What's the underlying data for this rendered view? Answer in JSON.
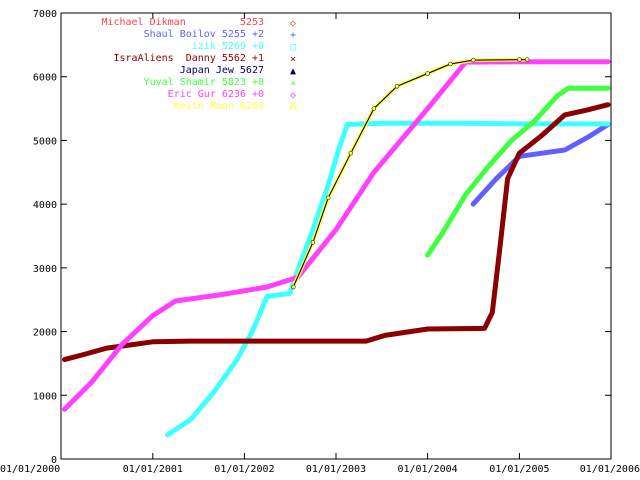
{
  "chart_data": {
    "type": "line",
    "title": "",
    "xlabel": "",
    "ylabel": "",
    "x_range": [
      "2000-01-01",
      "2006-01-01"
    ],
    "ylim": [
      0,
      7000
    ],
    "y_ticks": [
      0,
      1000,
      2000,
      3000,
      4000,
      5000,
      6000,
      7000
    ],
    "x_ticks": [
      {
        "date": "2000-01-01",
        "label": "01/01/2000"
      },
      {
        "date": "2001-01-01",
        "label": "01/01/2001"
      },
      {
        "date": "2002-01-01",
        "label": "01/01/2002"
      },
      {
        "date": "2003-01-01",
        "label": "01/01/2003"
      },
      {
        "date": "2004-01-01",
        "label": "01/01/2004"
      },
      {
        "date": "2005-01-01",
        "label": "01/01/2005"
      },
      {
        "date": "2006-01-01",
        "label": "01/01/2006"
      }
    ],
    "grid": false,
    "legend_position": "top-left",
    "series": [
      {
        "name": "Michael Dikman         5253",
        "color": "#ff4040",
        "marker": "◇",
        "points": []
      },
      {
        "name": "Shaul Boilov 5255 +2",
        "color": "#6060ff",
        "marker": "+",
        "points": [
          [
            "2004-07-01",
            4000
          ],
          [
            "2004-10-01",
            4400
          ],
          [
            "2005-01-01",
            4750
          ],
          [
            "2005-04-01",
            4800
          ],
          [
            "2005-07-01",
            4850
          ],
          [
            "2005-10-01",
            5050
          ],
          [
            "2005-12-20",
            5250
          ]
        ]
      },
      {
        "name": "izik 5269 +0",
        "color": "#40ffff",
        "marker": "□",
        "points": [
          [
            "2001-03-01",
            380
          ],
          [
            "2001-06-01",
            620
          ],
          [
            "2001-09-01",
            1050
          ],
          [
            "2001-12-01",
            1550
          ],
          [
            "2002-02-01",
            2000
          ],
          [
            "2002-04-01",
            2550
          ],
          [
            "2002-07-01",
            2600
          ],
          [
            "2002-08-01",
            2950
          ],
          [
            "2002-10-01",
            3600
          ],
          [
            "2002-12-01",
            4300
          ],
          [
            "2003-01-15",
            4900
          ],
          [
            "2003-02-15",
            5250
          ],
          [
            "2003-07-01",
            5270
          ],
          [
            "2004-06-01",
            5270
          ],
          [
            "2005-01-01",
            5260
          ],
          [
            "2005-12-20",
            5260
          ]
        ]
      },
      {
        "name": "IsraAliens  Danny 5562 +1",
        "color": "#8b0000",
        "marker": "×",
        "points": [
          [
            "2000-01-15",
            1560
          ],
          [
            "2000-04-01",
            1640
          ],
          [
            "2000-07-01",
            1740
          ],
          [
            "2000-10-01",
            1790
          ],
          [
            "2001-01-01",
            1840
          ],
          [
            "2001-06-01",
            1850
          ],
          [
            "2002-06-01",
            1850
          ],
          [
            "2003-05-01",
            1850
          ],
          [
            "2003-07-15",
            1940
          ],
          [
            "2004-01-01",
            2040
          ],
          [
            "2004-08-15",
            2050
          ],
          [
            "2004-09-15",
            2300
          ],
          [
            "2004-10-15",
            3300
          ],
          [
            "2004-11-15",
            4400
          ],
          [
            "2005-01-01",
            4800
          ],
          [
            "2005-04-01",
            5080
          ],
          [
            "2005-07-01",
            5400
          ],
          [
            "2005-10-01",
            5480
          ],
          [
            "2005-12-20",
            5560
          ]
        ]
      },
      {
        "name": "Japan Jew 5627",
        "color": "#000060",
        "marker": "▲",
        "points": []
      },
      {
        "name": "Yuval Shamir 5823 +0",
        "color": "#40ff40",
        "marker": "✳",
        "points": [
          [
            "2004-01-01",
            3200
          ],
          [
            "2004-03-01",
            3550
          ],
          [
            "2004-06-01",
            4150
          ],
          [
            "2004-09-01",
            4600
          ],
          [
            "2004-12-01",
            5000
          ],
          [
            "2005-03-01",
            5300
          ],
          [
            "2005-06-01",
            5700
          ],
          [
            "2005-07-15",
            5820
          ],
          [
            "2005-12-20",
            5820
          ]
        ]
      },
      {
        "name": "Eric Gur 6236 +0",
        "color": "#ff40ff",
        "marker": "◇",
        "points": [
          [
            "2000-01-15",
            780
          ],
          [
            "2000-05-01",
            1200
          ],
          [
            "2000-09-01",
            1800
          ],
          [
            "2001-01-01",
            2250
          ],
          [
            "2001-04-01",
            2480
          ],
          [
            "2001-10-01",
            2580
          ],
          [
            "2002-04-01",
            2700
          ],
          [
            "2002-08-01",
            2850
          ],
          [
            "2003-01-01",
            3600
          ],
          [
            "2003-06-01",
            4500
          ],
          [
            "2004-01-01",
            5500
          ],
          [
            "2004-06-01",
            6230
          ],
          [
            "2005-06-01",
            6236
          ],
          [
            "2005-12-20",
            6236
          ]
        ]
      },
      {
        "name": "Keith Moon 6269",
        "color": "#ffff40",
        "marker": "⁂",
        "points": [
          [
            "2002-07-15",
            2700
          ],
          [
            "2002-10-01",
            3400
          ],
          [
            "2002-12-01",
            4100
          ],
          [
            "2003-03-01",
            4800
          ],
          [
            "2003-06-01",
            5500
          ],
          [
            "2003-09-01",
            5850
          ],
          [
            "2004-01-01",
            6050
          ],
          [
            "2004-04-01",
            6200
          ],
          [
            "2004-07-01",
            6260
          ],
          [
            "2005-01-01",
            6269
          ],
          [
            "2005-02-01",
            6269
          ]
        ]
      }
    ]
  }
}
